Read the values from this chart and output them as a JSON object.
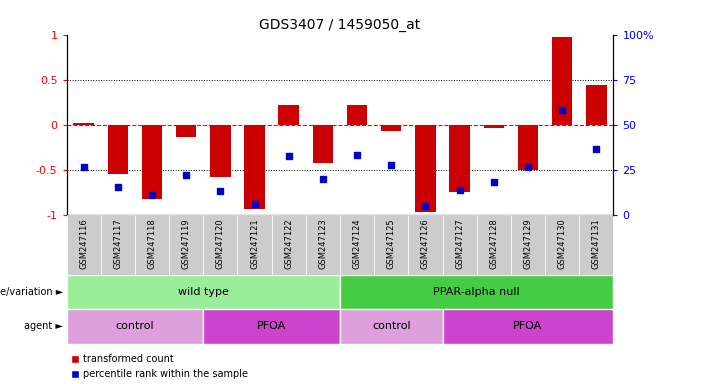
{
  "title": "GDS3407 / 1459050_at",
  "samples": [
    "GSM247116",
    "GSM247117",
    "GSM247118",
    "GSM247119",
    "GSM247120",
    "GSM247121",
    "GSM247122",
    "GSM247123",
    "GSM247124",
    "GSM247125",
    "GSM247126",
    "GSM247127",
    "GSM247128",
    "GSM247129",
    "GSM247130",
    "GSM247131"
  ],
  "bar_values": [
    0.02,
    -0.55,
    -0.82,
    -0.13,
    -0.58,
    -0.93,
    0.22,
    -0.42,
    0.22,
    -0.07,
    -0.97,
    -0.75,
    -0.04,
    -0.5,
    0.97,
    0.44
  ],
  "dot_values": [
    -0.47,
    -0.69,
    -0.78,
    -0.56,
    -0.73,
    -0.88,
    -0.35,
    -0.6,
    -0.33,
    -0.45,
    -0.9,
    -0.72,
    -0.63,
    -0.47,
    0.16,
    -0.27
  ],
  "bar_color": "#CC0000",
  "dot_color": "#0000CC",
  "ylim": [
    -1,
    1
  ],
  "yticks_left": [
    -1,
    -0.5,
    0,
    0.5,
    1
  ],
  "yticks_left_labels": [
    "-1",
    "-0.5",
    "0",
    "0.5",
    "1"
  ],
  "yticks_right": [
    0,
    25,
    50,
    75,
    100
  ],
  "yticks_right_labels": [
    "0",
    "25",
    "50",
    "75",
    "100%"
  ],
  "genotype_blocks": [
    {
      "label": "wild type",
      "start": 0,
      "end": 8,
      "color": "#99EE99"
    },
    {
      "label": "PPAR-alpha null",
      "start": 8,
      "end": 16,
      "color": "#44CC44"
    }
  ],
  "agent_blocks": [
    {
      "label": "control",
      "start": 0,
      "end": 4,
      "color": "#DDA0DD"
    },
    {
      "label": "PFOA",
      "start": 4,
      "end": 8,
      "color": "#CC44CC"
    },
    {
      "label": "control",
      "start": 8,
      "end": 11,
      "color": "#DDA0DD"
    },
    {
      "label": "PFOA",
      "start": 11,
      "end": 16,
      "color": "#CC44CC"
    }
  ],
  "genotype_label": "genotype/variation",
  "agent_label": "agent",
  "legend_items": [
    {
      "color": "#CC0000",
      "label": "transformed count"
    },
    {
      "color": "#0000CC",
      "label": "percentile rank within the sample"
    }
  ]
}
